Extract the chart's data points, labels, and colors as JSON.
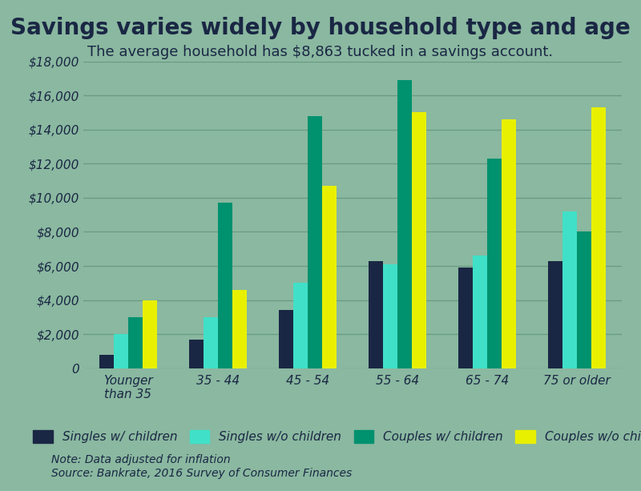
{
  "title": "Savings varies widely by household type and age",
  "subtitle": "The average household has $8,863 tucked in a savings account.",
  "categories": [
    "Younger\nthan 35",
    "35 - 44",
    "45 - 54",
    "55 - 64",
    "65 - 74",
    "75 or older"
  ],
  "series": [
    {
      "label": "Singles w/ children",
      "color": "#1a2744",
      "values": [
        800,
        1700,
        3400,
        6300,
        5900,
        6300
      ]
    },
    {
      "label": "Singles w/o children",
      "color": "#40e0c8",
      "values": [
        2000,
        3000,
        5000,
        6100,
        6600,
        9200
      ]
    },
    {
      "label": "Couples w/ children",
      "color": "#00916e",
      "values": [
        3000,
        9700,
        14800,
        16900,
        12300,
        8000
      ]
    },
    {
      "label": "Couples w/o children",
      "color": "#e8f000",
      "values": [
        4000,
        4600,
        10700,
        15000,
        14600,
        15300
      ]
    }
  ],
  "ylim": [
    0,
    18000
  ],
  "yticks": [
    0,
    2000,
    4000,
    6000,
    8000,
    10000,
    12000,
    14000,
    16000,
    18000
  ],
  "note": "Note: Data adjusted for inflation\nSource: Bankrate, 2016 Survey of Consumer Finances",
  "background_color": "#8ab8a0",
  "grid_color": "#6a9a82",
  "title_color": "#1a2744",
  "subtitle_color": "#1a2744",
  "tick_color": "#1a2744",
  "note_color": "#1a2744",
  "title_fontsize": 20,
  "subtitle_fontsize": 13,
  "legend_fontsize": 11,
  "note_fontsize": 10,
  "bar_width": 0.16
}
